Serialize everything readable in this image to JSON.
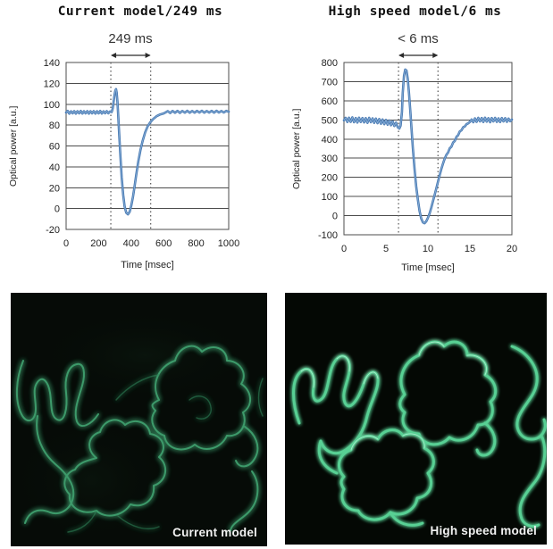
{
  "chart_data": [
    {
      "type": "line",
      "title": "Current model/249 ms",
      "annotation": "249 ms",
      "xlabel": "Time [msec]",
      "ylabel": "Optical power [a.u.]",
      "xlim": [
        0,
        1000
      ],
      "ylim": [
        -20,
        140
      ],
      "xticks": [
        0,
        200,
        400,
        600,
        800,
        1000
      ],
      "yticks": [
        140,
        120,
        100,
        80,
        60,
        40,
        20,
        0,
        -20
      ],
      "marker_x": [
        275,
        520
      ],
      "grid_color": "#4c4c4c",
      "marker_color": "#606060",
      "line_color": "#4678b2",
      "line_highlight": "#93b6da",
      "points": [
        [
          0,
          92
        ],
        [
          10,
          93.5
        ],
        [
          20,
          91
        ],
        [
          30,
          93.2
        ],
        [
          40,
          91.2
        ],
        [
          50,
          93.4
        ],
        [
          60,
          91
        ],
        [
          70,
          93.3
        ],
        [
          80,
          91.2
        ],
        [
          90,
          93.5
        ],
        [
          100,
          91.1
        ],
        [
          110,
          93.3
        ],
        [
          120,
          91.2
        ],
        [
          130,
          93.4
        ],
        [
          140,
          91
        ],
        [
          150,
          93.3
        ],
        [
          160,
          91.2
        ],
        [
          170,
          93.4
        ],
        [
          180,
          91.1
        ],
        [
          190,
          93.3
        ],
        [
          200,
          91.2
        ],
        [
          210,
          93.5
        ],
        [
          220,
          91.1
        ],
        [
          230,
          93.2
        ],
        [
          240,
          91.3
        ],
        [
          250,
          93.4
        ],
        [
          260,
          91.3
        ],
        [
          270,
          93
        ],
        [
          280,
          92.5
        ],
        [
          287,
          96
        ],
        [
          293,
          103
        ],
        [
          298,
          109
        ],
        [
          303,
          113
        ],
        [
          307,
          114.5
        ],
        [
          311,
          111
        ],
        [
          316,
          102
        ],
        [
          321,
          88
        ],
        [
          327,
          70
        ],
        [
          334,
          50
        ],
        [
          342,
          30
        ],
        [
          351,
          13
        ],
        [
          360,
          2
        ],
        [
          370,
          -4
        ],
        [
          380,
          -5.5
        ],
        [
          391,
          -3
        ],
        [
          401,
          3
        ],
        [
          411,
          11
        ],
        [
          421,
          21
        ],
        [
          432,
          33
        ],
        [
          444,
          45
        ],
        [
          457,
          56
        ],
        [
          471,
          65
        ],
        [
          486,
          73
        ],
        [
          502,
          79
        ],
        [
          519,
          83
        ],
        [
          537,
          86
        ],
        [
          556,
          88.5
        ],
        [
          576,
          90
        ],
        [
          597,
          91
        ],
        [
          610,
          92
        ],
        [
          625,
          93.4
        ],
        [
          640,
          91.6
        ],
        [
          655,
          93.5
        ],
        [
          670,
          91.8
        ],
        [
          685,
          93.6
        ],
        [
          700,
          91.7
        ],
        [
          715,
          93.5
        ],
        [
          730,
          91.9
        ],
        [
          745,
          93.7
        ],
        [
          760,
          91.8
        ],
        [
          775,
          93.5
        ],
        [
          790,
          91.9
        ],
        [
          805,
          93.6
        ],
        [
          820,
          92
        ],
        [
          835,
          93.7
        ],
        [
          850,
          91.9
        ],
        [
          865,
          93.5
        ],
        [
          880,
          92
        ],
        [
          895,
          93.6
        ],
        [
          910,
          91.9
        ],
        [
          925,
          93.7
        ],
        [
          940,
          92
        ],
        [
          955,
          93.5
        ],
        [
          970,
          92
        ],
        [
          985,
          93.6
        ],
        [
          1000,
          92.8
        ]
      ]
    },
    {
      "type": "line",
      "title": "High speed model/6 ms",
      "annotation": "< 6 ms",
      "xlabel": "Time [msec]",
      "ylabel": "Optical power [a.u.]",
      "xlim": [
        0,
        20
      ],
      "ylim": [
        -100,
        800
      ],
      "xticks": [
        0,
        5,
        10,
        15,
        20
      ],
      "yticks": [
        800,
        700,
        600,
        500,
        400,
        300,
        200,
        100,
        0,
        -100
      ],
      "marker_x": [
        6.5,
        11.2
      ],
      "grid_color": "#4c4c4c",
      "marker_color": "#606060",
      "line_color": "#4678b2",
      "line_highlight": "#93b6da",
      "points": [
        [
          0,
          498
        ],
        [
          0.2,
          511
        ],
        [
          0.4,
          489
        ],
        [
          0.6,
          512
        ],
        [
          0.8,
          490
        ],
        [
          1,
          513
        ],
        [
          1.2,
          488
        ],
        [
          1.4,
          510
        ],
        [
          1.6,
          486
        ],
        [
          1.8,
          512
        ],
        [
          2,
          489
        ],
        [
          2.2,
          510
        ],
        [
          2.4,
          487
        ],
        [
          2.6,
          509
        ],
        [
          2.8,
          485
        ],
        [
          3,
          511
        ],
        [
          3.2,
          488
        ],
        [
          3.4,
          508
        ],
        [
          3.6,
          485
        ],
        [
          3.8,
          507
        ],
        [
          4,
          483
        ],
        [
          4.2,
          505
        ],
        [
          4.4,
          480
        ],
        [
          4.6,
          502
        ],
        [
          4.8,
          478
        ],
        [
          5,
          500
        ],
        [
          5.2,
          475
        ],
        [
          5.4,
          497
        ],
        [
          5.6,
          472
        ],
        [
          5.8,
          492
        ],
        [
          6,
          468
        ],
        [
          6.2,
          486
        ],
        [
          6.4,
          462
        ],
        [
          6.6,
          455
        ],
        [
          6.75,
          470
        ],
        [
          6.9,
          540
        ],
        [
          7,
          640
        ],
        [
          7.15,
          730
        ],
        [
          7.3,
          763
        ],
        [
          7.45,
          758
        ],
        [
          7.6,
          715
        ],
        [
          7.75,
          640
        ],
        [
          7.9,
          545
        ],
        [
          8.05,
          450
        ],
        [
          8.2,
          355
        ],
        [
          8.4,
          245
        ],
        [
          8.6,
          155
        ],
        [
          8.8,
          85
        ],
        [
          9,
          25
        ],
        [
          9.2,
          -15
        ],
        [
          9.4,
          -35
        ],
        [
          9.6,
          -40
        ],
        [
          9.8,
          -30
        ],
        [
          10,
          -12
        ],
        [
          10.2,
          12
        ],
        [
          10.4,
          42
        ],
        [
          10.6,
          75
        ],
        [
          10.8,
          108
        ],
        [
          11,
          142
        ],
        [
          11.2,
          178
        ],
        [
          11.4,
          212
        ],
        [
          11.6,
          243
        ],
        [
          11.8,
          272
        ],
        [
          12,
          298
        ],
        [
          12.2,
          318
        ],
        [
          12.4,
          330
        ],
        [
          12.6,
          352
        ],
        [
          12.8,
          360
        ],
        [
          13,
          382
        ],
        [
          13.2,
          390
        ],
        [
          13.4,
          412
        ],
        [
          13.6,
          420
        ],
        [
          13.8,
          440
        ],
        [
          14,
          446
        ],
        [
          14.2,
          462
        ],
        [
          14.4,
          466
        ],
        [
          14.6,
          478
        ],
        [
          14.8,
          482
        ],
        [
          15,
          490
        ],
        [
          15.2,
          502
        ],
        [
          15.4,
          488
        ],
        [
          15.6,
          508
        ],
        [
          15.8,
          490
        ],
        [
          16,
          511
        ],
        [
          16.2,
          492
        ],
        [
          16.4,
          510
        ],
        [
          16.6,
          489
        ],
        [
          16.8,
          512
        ],
        [
          17,
          491
        ],
        [
          17.2,
          509
        ],
        [
          17.4,
          488
        ],
        [
          17.6,
          510
        ],
        [
          17.8,
          492
        ],
        [
          18,
          511
        ],
        [
          18.2,
          490
        ],
        [
          18.4,
          508
        ],
        [
          18.6,
          489
        ],
        [
          18.8,
          510
        ],
        [
          19,
          492
        ],
        [
          19.2,
          509
        ],
        [
          19.4,
          490
        ],
        [
          19.6,
          507
        ],
        [
          19.8,
          493
        ],
        [
          20,
          502
        ]
      ]
    }
  ],
  "images": [
    {
      "label": "Current model"
    },
    {
      "label": "High speed model"
    }
  ]
}
